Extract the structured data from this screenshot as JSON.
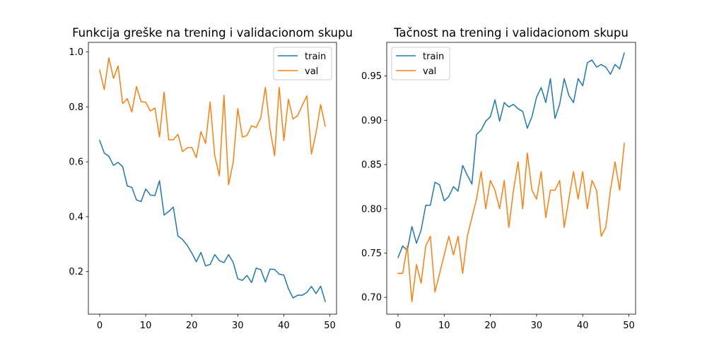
{
  "chart_data": [
    {
      "type": "line",
      "title": "Funkcija greške na trening i validacionom skupu",
      "xlabel": "",
      "ylabel": "",
      "xlim": [
        -2.45,
        51.45
      ],
      "ylim": [
        0.045,
        1.035
      ],
      "xticks": [
        0,
        10,
        20,
        30,
        40,
        50
      ],
      "yticks": [
        0.2,
        0.4,
        0.6,
        0.8,
        1.0
      ],
      "ytick_labels": [
        "0.2",
        "0.4",
        "0.6",
        "0.8",
        "1.0"
      ],
      "legend_position": "top-right",
      "grid": false,
      "series": [
        {
          "name": "train",
          "color": "#1f77b4",
          "x": [
            0,
            1,
            2,
            3,
            4,
            5,
            6,
            7,
            8,
            9,
            10,
            11,
            12,
            13,
            14,
            15,
            16,
            17,
            18,
            19,
            20,
            21,
            22,
            23,
            24,
            25,
            26,
            27,
            28,
            29,
            30,
            31,
            32,
            33,
            34,
            35,
            36,
            37,
            38,
            39,
            40,
            41,
            42,
            43,
            44,
            45,
            46,
            47,
            48,
            49
          ],
          "values": [
            0.678,
            0.632,
            0.62,
            0.587,
            0.598,
            0.582,
            0.512,
            0.507,
            0.461,
            0.455,
            0.501,
            0.479,
            0.477,
            0.531,
            0.406,
            0.419,
            0.435,
            0.33,
            0.317,
            0.296,
            0.268,
            0.236,
            0.27,
            0.221,
            0.226,
            0.262,
            0.24,
            0.233,
            0.262,
            0.234,
            0.174,
            0.168,
            0.186,
            0.16,
            0.213,
            0.207,
            0.162,
            0.209,
            0.208,
            0.191,
            0.187,
            0.138,
            0.104,
            0.114,
            0.114,
            0.124,
            0.146,
            0.12,
            0.147,
            0.091
          ]
        },
        {
          "name": "val",
          "color": "#ff7f0e",
          "x": [
            0,
            1,
            2,
            3,
            4,
            5,
            6,
            7,
            8,
            9,
            10,
            11,
            12,
            13,
            14,
            15,
            16,
            17,
            18,
            19,
            20,
            21,
            22,
            23,
            24,
            25,
            26,
            27,
            28,
            29,
            30,
            31,
            32,
            33,
            34,
            35,
            36,
            37,
            38,
            39,
            40,
            41,
            42,
            43,
            44,
            45,
            46,
            47,
            48,
            49
          ],
          "values": [
            0.934,
            0.863,
            0.979,
            0.904,
            0.949,
            0.812,
            0.83,
            0.781,
            0.874,
            0.819,
            0.817,
            0.785,
            0.796,
            0.69,
            0.854,
            0.68,
            0.68,
            0.7,
            0.637,
            0.651,
            0.653,
            0.615,
            0.71,
            0.667,
            0.818,
            0.622,
            0.549,
            0.842,
            0.516,
            0.598,
            0.794,
            0.69,
            0.696,
            0.731,
            0.725,
            0.76,
            0.871,
            0.72,
            0.622,
            0.871,
            0.677,
            0.828,
            0.756,
            0.768,
            0.805,
            0.84,
            0.628,
            0.706,
            0.808,
            0.73
          ]
        }
      ]
    },
    {
      "type": "line",
      "title": "Tačnost na trening i validacionom skupu",
      "xlabel": "",
      "ylabel": "",
      "xlim": [
        -2.45,
        51.45
      ],
      "ylim": [
        0.681,
        0.988
      ],
      "xticks": [
        0,
        10,
        20,
        30,
        40,
        50
      ],
      "yticks": [
        0.7,
        0.75,
        0.8,
        0.85,
        0.9,
        0.95
      ],
      "ytick_labels": [
        "0.70",
        "0.75",
        "0.80",
        "0.85",
        "0.90",
        "0.95"
      ],
      "legend_position": "top-left",
      "grid": false,
      "series": [
        {
          "name": "train",
          "color": "#1f77b4",
          "x": [
            0,
            1,
            2,
            3,
            4,
            5,
            6,
            7,
            8,
            9,
            10,
            11,
            12,
            13,
            14,
            15,
            16,
            17,
            18,
            19,
            20,
            21,
            22,
            23,
            24,
            25,
            26,
            27,
            28,
            29,
            30,
            31,
            32,
            33,
            34,
            35,
            36,
            37,
            38,
            39,
            40,
            41,
            42,
            43,
            44,
            45,
            46,
            47,
            48,
            49
          ],
          "values": [
            0.745,
            0.758,
            0.753,
            0.78,
            0.761,
            0.776,
            0.804,
            0.804,
            0.83,
            0.827,
            0.809,
            0.814,
            0.825,
            0.82,
            0.849,
            0.838,
            0.828,
            0.884,
            0.889,
            0.899,
            0.904,
            0.923,
            0.899,
            0.92,
            0.915,
            0.918,
            0.913,
            0.91,
            0.891,
            0.904,
            0.926,
            0.937,
            0.92,
            0.947,
            0.902,
            0.918,
            0.947,
            0.928,
            0.92,
            0.947,
            0.939,
            0.965,
            0.968,
            0.96,
            0.963,
            0.96,
            0.952,
            0.963,
            0.958,
            0.976
          ]
        },
        {
          "name": "val",
          "color": "#ff7f0e",
          "x": [
            0,
            1,
            2,
            3,
            4,
            5,
            6,
            7,
            8,
            9,
            10,
            11,
            12,
            13,
            14,
            15,
            16,
            17,
            18,
            19,
            20,
            21,
            22,
            23,
            24,
            25,
            26,
            27,
            28,
            29,
            30,
            31,
            32,
            33,
            34,
            35,
            36,
            37,
            38,
            39,
            40,
            41,
            42,
            43,
            44,
            45,
            46,
            47,
            48,
            49
          ],
          "values": [
            0.727,
            0.727,
            0.758,
            0.695,
            0.737,
            0.716,
            0.758,
            0.769,
            0.706,
            0.727,
            0.748,
            0.769,
            0.748,
            0.769,
            0.727,
            0.769,
            0.79,
            0.811,
            0.842,
            0.8,
            0.832,
            0.821,
            0.8,
            0.832,
            0.779,
            0.821,
            0.853,
            0.8,
            0.863,
            0.821,
            0.811,
            0.842,
            0.79,
            0.821,
            0.821,
            0.832,
            0.779,
            0.811,
            0.842,
            0.811,
            0.842,
            0.8,
            0.832,
            0.821,
            0.769,
            0.779,
            0.821,
            0.853,
            0.821,
            0.874
          ]
        }
      ]
    }
  ]
}
